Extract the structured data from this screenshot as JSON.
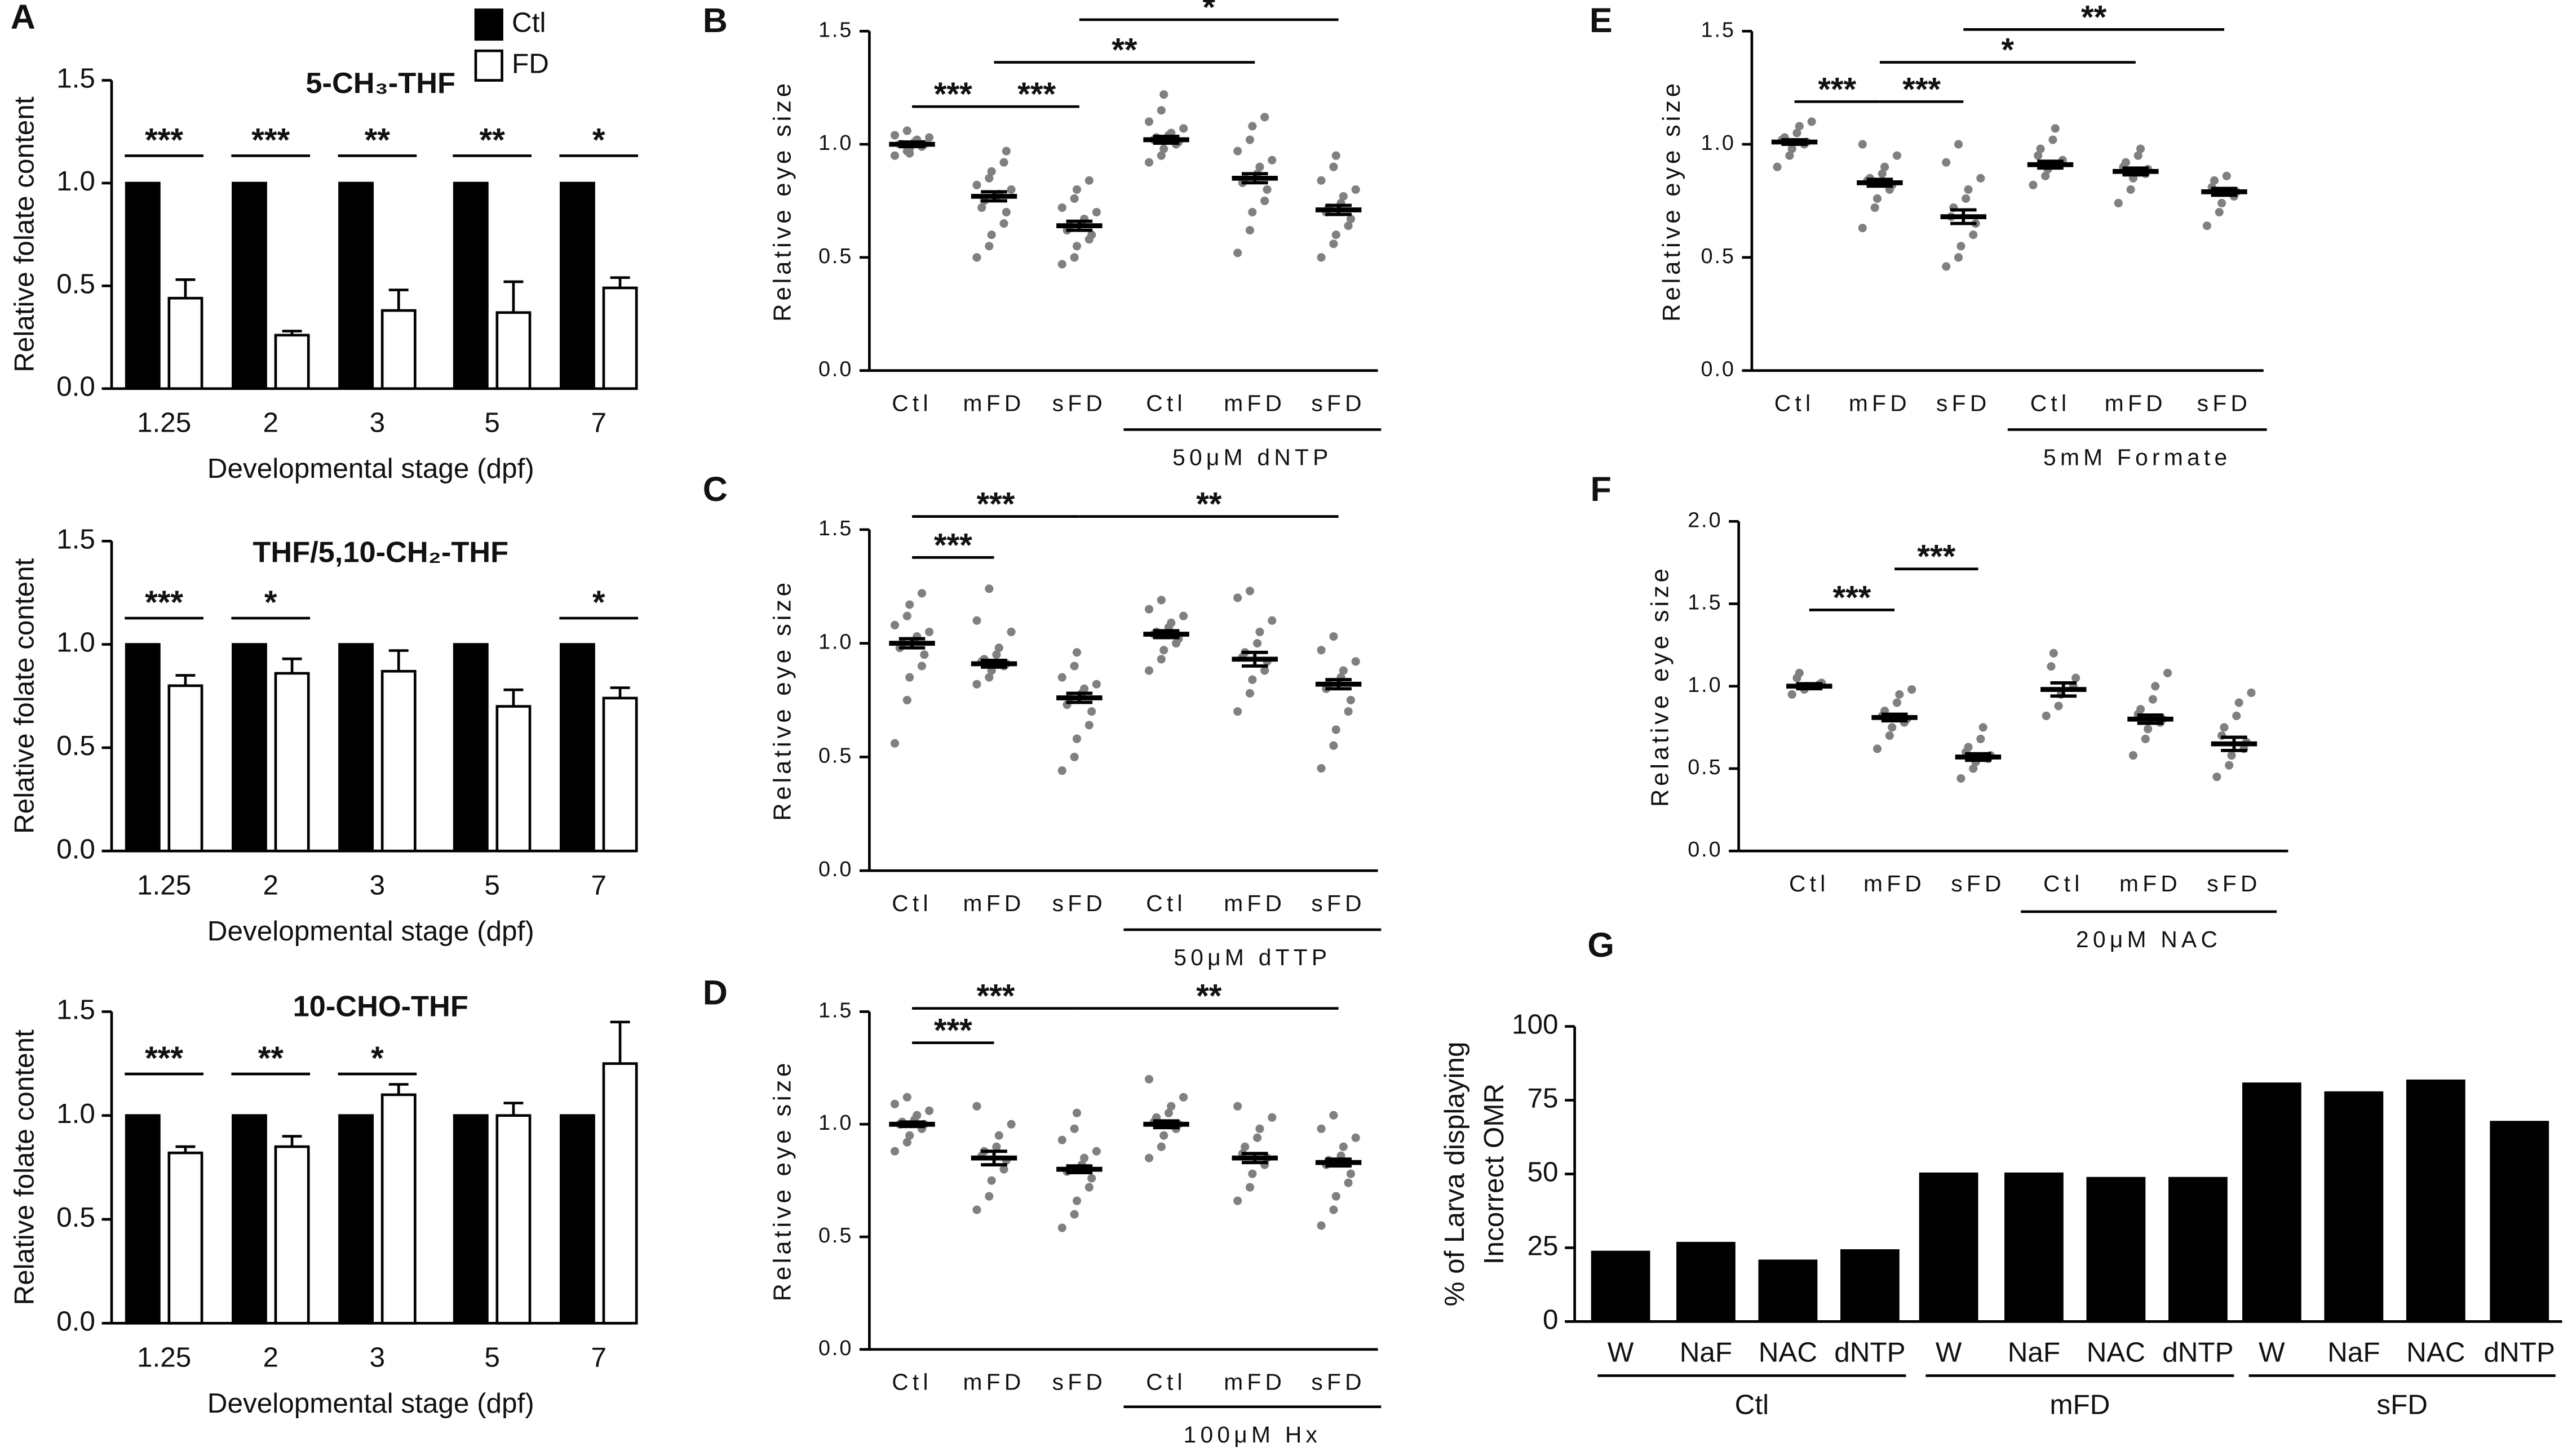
{
  "chart_data": [
    {
      "type": "bar",
      "panel": "A",
      "title": "5-CH₃-THF",
      "ylabel": "Relative folate content",
      "xlabel": "Developmental stage (dpf)",
      "categories": [
        "1.25",
        "2",
        "3",
        "5",
        "7"
      ],
      "series": [
        {
          "name": "Ctl",
          "color": "#000000",
          "values": [
            1,
            1,
            1,
            1,
            1
          ]
        },
        {
          "name": "FD",
          "color": "#ffffff",
          "values": [
            0.44,
            0.26,
            0.38,
            0.37,
            0.49
          ],
          "errors": [
            0.09,
            0.02,
            0.1,
            0.15,
            0.05
          ]
        }
      ],
      "legend": "upper right",
      "ylim": [
        0,
        1.5
      ],
      "yticks": [
        {
          "value": 0,
          "label": "0.0"
        },
        {
          "value": 0.5,
          "label": "0.5"
        },
        {
          "value": 1,
          "label": "1.0"
        },
        {
          "value": 1.5,
          "label": "1.5"
        }
      ],
      "significance": [
        {
          "text": "***",
          "category": 0
        },
        {
          "text": "***",
          "category": 1
        },
        {
          "text": "**",
          "category": 2
        },
        {
          "text": "**",
          "category": 3
        },
        {
          "text": "*",
          "category": 4
        }
      ]
    },
    {
      "type": "bar",
      "title": "THF/5,10-CH₂-THF",
      "ylabel": "Relative folate content",
      "xlabel": "Developmental stage (dpf)",
      "categories": [
        "1.25",
        "2",
        "3",
        "5",
        "7"
      ],
      "series": [
        {
          "color": "#000000",
          "values": [
            1,
            1,
            1,
            1,
            1
          ]
        },
        {
          "color": "#ffffff",
          "values": [
            0.8,
            0.86,
            0.87,
            0.7,
            0.74
          ],
          "errors": [
            0.05,
            0.07,
            0.1,
            0.08,
            0.05
          ]
        }
      ],
      "ylim": [
        0,
        1.5
      ],
      "yticks": [
        {
          "value": 0,
          "label": "0.0"
        },
        {
          "value": 0.5,
          "label": "0.5"
        },
        {
          "value": 1,
          "label": "1.0"
        },
        {
          "value": 1.5,
          "label": "1.5"
        }
      ],
      "significance": [
        {
          "text": "***",
          "category": 0
        },
        {
          "text": "*",
          "category": 1
        },
        {
          "text": "*",
          "category": 4
        }
      ]
    },
    {
      "type": "bar",
      "title": "10-CHO-THF",
      "ylabel": "Relative folate content",
      "xlabel": "Developmental stage (dpf)",
      "categories": [
        "1.25",
        "2",
        "3",
        "5",
        "7"
      ],
      "series": [
        {
          "color": "#000000",
          "values": [
            1,
            1,
            1,
            1,
            1
          ]
        },
        {
          "color": "#ffffff",
          "values": [
            0.82,
            0.85,
            1.1,
            1.0,
            1.25
          ],
          "errors": [
            0.03,
            0.05,
            0.05,
            0.06,
            0.2
          ]
        }
      ],
      "ylim": [
        0,
        1.5
      ],
      "yticks": [
        {
          "value": 0,
          "label": "0.0"
        },
        {
          "value": 0.5,
          "label": "0.5"
        },
        {
          "value": 1,
          "label": "1.0"
        },
        {
          "value": 1.5,
          "label": "1.5"
        }
      ],
      "significance": [
        {
          "text": "***",
          "category": 0
        },
        {
          "text": "**",
          "category": 1
        },
        {
          "text": "*",
          "category": 2
        }
      ]
    },
    {
      "type": "dot",
      "panel": "B",
      "ylabel": "Relative eye size",
      "group_label": "50μM dNTP",
      "color": "#808080",
      "categories": [
        "Ctl",
        "mFD",
        "sFD",
        "Ctl",
        "mFD",
        "sFD"
      ],
      "points": [
        [
          0.95,
          0.97,
          0.98,
          0.99,
          1.0,
          1.0,
          1.0,
          1.01,
          1.02,
          1.03,
          1.04,
          1.06,
          0.96,
          1.0
        ],
        [
          0.5,
          0.55,
          0.6,
          0.65,
          0.7,
          0.72,
          0.75,
          0.77,
          0.78,
          0.8,
          0.82,
          0.85,
          0.88,
          0.92,
          0.97
        ],
        [
          0.47,
          0.5,
          0.55,
          0.58,
          0.6,
          0.62,
          0.64,
          0.65,
          0.67,
          0.7,
          0.72,
          0.76,
          0.8,
          0.84
        ],
        [
          0.92,
          0.95,
          0.98,
          1.0,
          1.01,
          1.02,
          1.03,
          1.04,
          1.05,
          1.07,
          1.1,
          1.15,
          1.22
        ],
        [
          0.52,
          0.62,
          0.7,
          0.75,
          0.8,
          0.83,
          0.85,
          0.87,
          0.9,
          0.93,
          0.97,
          1.02,
          1.08,
          1.12
        ],
        [
          0.5,
          0.56,
          0.6,
          0.64,
          0.67,
          0.7,
          0.72,
          0.74,
          0.77,
          0.8,
          0.84,
          0.9,
          0.95
        ]
      ],
      "means": [
        1.0,
        0.77,
        0.64,
        1.02,
        0.85,
        0.71
      ],
      "sems": [
        0.01,
        0.02,
        0.02,
        0.015,
        0.02,
        0.02
      ],
      "ylim": [
        0,
        1.5
      ],
      "yticks": [
        {
          "value": 0,
          "label": "0.0"
        },
        {
          "value": 0.5,
          "label": "0.5"
        },
        {
          "value": 1,
          "label": "1.0"
        },
        {
          "value": 1.5,
          "label": "1.5"
        }
      ],
      "significance": [
        {
          "text": "***",
          "groups": [
            0,
            1
          ]
        },
        {
          "text": "***",
          "groups": [
            1,
            2
          ]
        },
        {
          "text": "**",
          "groups": [
            1,
            4
          ]
        },
        {
          "text": "*",
          "groups": [
            2,
            5
          ]
        }
      ]
    },
    {
      "type": "dot",
      "panel": "C",
      "ylabel": "Relative eye size",
      "group_label": "50μM dTTP",
      "color": "#808080",
      "categories": [
        "Ctl",
        "mFD",
        "sFD",
        "Ctl",
        "mFD",
        "sFD"
      ],
      "points": [
        [
          0.56,
          0.75,
          0.85,
          0.9,
          0.95,
          0.98,
          1.0,
          1.01,
          1.03,
          1.05,
          1.08,
          1.12,
          1.17,
          1.22
        ],
        [
          0.82,
          0.85,
          0.88,
          0.9,
          0.91,
          0.92,
          0.93,
          0.95,
          0.98,
          1.05,
          1.1,
          1.24
        ],
        [
          0.44,
          0.5,
          0.58,
          0.64,
          0.7,
          0.73,
          0.76,
          0.78,
          0.8,
          0.82,
          0.85,
          0.9,
          0.96
        ],
        [
          0.88,
          0.93,
          0.97,
          1.0,
          1.02,
          1.04,
          1.05,
          1.07,
          1.09,
          1.12,
          1.15,
          1.19
        ],
        [
          0.7,
          0.78,
          0.84,
          0.88,
          0.92,
          0.94,
          0.96,
          1.0,
          1.05,
          1.1,
          1.2,
          1.23
        ],
        [
          0.45,
          0.55,
          0.62,
          0.7,
          0.75,
          0.8,
          0.82,
          0.85,
          0.88,
          0.92,
          0.97,
          1.03
        ]
      ],
      "means": [
        1.0,
        0.91,
        0.76,
        1.04,
        0.93,
        0.82
      ],
      "sems": [
        0.02,
        0.015,
        0.02,
        0.015,
        0.03,
        0.02
      ],
      "ylim": [
        0,
        1.5
      ],
      "yticks": [
        {
          "value": 0,
          "label": "0.0"
        },
        {
          "value": 0.5,
          "label": "0.5"
        },
        {
          "value": 1,
          "label": "1.0"
        },
        {
          "value": 1.5,
          "label": "1.5"
        }
      ],
      "significance": [
        {
          "text": "***",
          "groups": [
            0,
            1
          ]
        },
        {
          "text": "***",
          "groups": [
            0,
            2
          ]
        },
        {
          "text": "**",
          "groups": [
            2,
            5
          ]
        }
      ]
    },
    {
      "type": "dot",
      "panel": "D",
      "ylabel": "Relative eye size",
      "group_label": "100μM Hx",
      "color": "#808080",
      "categories": [
        "Ctl",
        "mFD",
        "sFD",
        "Ctl",
        "mFD",
        "sFD"
      ],
      "points": [
        [
          0.88,
          0.92,
          0.95,
          0.98,
          1.0,
          1.0,
          1.01,
          1.02,
          1.04,
          1.06,
          1.09,
          1.12
        ],
        [
          0.62,
          0.68,
          0.75,
          0.8,
          0.84,
          0.86,
          0.88,
          0.9,
          0.95,
          1.0,
          1.08
        ],
        [
          0.54,
          0.6,
          0.66,
          0.72,
          0.76,
          0.79,
          0.8,
          0.82,
          0.85,
          0.88,
          0.93,
          0.98,
          1.05
        ],
        [
          0.85,
          0.9,
          0.95,
          0.98,
          1.0,
          1.01,
          1.03,
          1.05,
          1.08,
          1.12,
          1.2
        ],
        [
          0.66,
          0.72,
          0.78,
          0.82,
          0.85,
          0.87,
          0.9,
          0.94,
          0.98,
          1.03,
          1.08
        ],
        [
          0.55,
          0.62,
          0.68,
          0.74,
          0.78,
          0.82,
          0.84,
          0.86,
          0.9,
          0.94,
          0.98,
          1.04
        ]
      ],
      "means": [
        1.0,
        0.85,
        0.8,
        1.0,
        0.85,
        0.83
      ],
      "sems": [
        0.01,
        0.03,
        0.015,
        0.015,
        0.02,
        0.015
      ],
      "ylim": [
        0,
        1.5
      ],
      "yticks": [
        {
          "value": 0,
          "label": "0.0"
        },
        {
          "value": 0.5,
          "label": "0.5"
        },
        {
          "value": 1,
          "label": "1.0"
        },
        {
          "value": 1.5,
          "label": "1.5"
        }
      ],
      "significance": [
        {
          "text": "***",
          "groups": [
            0,
            1
          ]
        },
        {
          "text": "***",
          "groups": [
            0,
            2
          ]
        },
        {
          "text": "**",
          "groups": [
            2,
            5
          ]
        }
      ]
    },
    {
      "type": "dot",
      "panel": "E",
      "ylabel": "Relative eye size",
      "group_label": "5mM Formate",
      "color": "#808080",
      "categories": [
        "Ctl",
        "mFD",
        "sFD",
        "Ctl",
        "mFD",
        "sFD"
      ],
      "points": [
        [
          0.9,
          0.95,
          0.98,
          1.0,
          1.01,
          1.02,
          1.03,
          1.05,
          1.08,
          1.1
        ],
        [
          0.63,
          0.72,
          0.76,
          0.8,
          0.82,
          0.84,
          0.85,
          0.87,
          0.9,
          0.95,
          1.0
        ],
        [
          0.46,
          0.5,
          0.55,
          0.6,
          0.65,
          0.68,
          0.72,
          0.76,
          0.8,
          0.85,
          0.92,
          1.0
        ],
        [
          0.82,
          0.86,
          0.89,
          0.91,
          0.93,
          0.95,
          0.98,
          1.02,
          1.07
        ],
        [
          0.74,
          0.8,
          0.85,
          0.87,
          0.89,
          0.9,
          0.92,
          0.95,
          0.98
        ],
        [
          0.64,
          0.7,
          0.74,
          0.77,
          0.79,
          0.81,
          0.84,
          0.86
        ]
      ],
      "means": [
        1.01,
        0.83,
        0.68,
        0.91,
        0.88,
        0.79
      ],
      "sems": [
        0.01,
        0.015,
        0.03,
        0.015,
        0.015,
        0.015
      ],
      "ylim": [
        0,
        1.5
      ],
      "yticks": [
        {
          "value": 0,
          "label": "0.0"
        },
        {
          "value": 0.5,
          "label": "0.5"
        },
        {
          "value": 1,
          "label": "1.0"
        },
        {
          "value": 1.5,
          "label": "1.5"
        }
      ],
      "significance": [
        {
          "text": "***",
          "groups": [
            0,
            1
          ]
        },
        {
          "text": "***",
          "groups": [
            1,
            2
          ]
        },
        {
          "text": "*",
          "groups": [
            1,
            4
          ]
        },
        {
          "text": "**",
          "groups": [
            2,
            5
          ]
        }
      ]
    },
    {
      "type": "dot",
      "panel": "F",
      "ylabel": "Relative eye size",
      "group_label": "20μM NAC",
      "color": "#808080",
      "categories": [
        "Ctl",
        "mFD",
        "sFD",
        "Ctl",
        "mFD",
        "sFD"
      ],
      "points": [
        [
          0.95,
          0.98,
          1.0,
          1.01,
          1.02,
          1.05,
          1.08
        ],
        [
          0.62,
          0.7,
          0.75,
          0.78,
          0.8,
          0.82,
          0.85,
          0.9,
          0.95,
          0.98
        ],
        [
          0.44,
          0.5,
          0.54,
          0.56,
          0.58,
          0.6,
          0.63,
          0.68,
          0.75
        ],
        [
          0.82,
          0.88,
          0.95,
          1.0,
          1.05,
          1.12,
          1.2
        ],
        [
          0.58,
          0.68,
          0.74,
          0.78,
          0.8,
          0.83,
          0.86,
          0.92,
          1.0,
          1.08
        ],
        [
          0.45,
          0.52,
          0.58,
          0.62,
          0.66,
          0.7,
          0.75,
          0.82,
          0.9,
          0.96
        ]
      ],
      "means": [
        1.0,
        0.81,
        0.57,
        0.98,
        0.8,
        0.65
      ],
      "sems": [
        0.015,
        0.02,
        0.02,
        0.04,
        0.025,
        0.04
      ],
      "ylim": [
        0,
        2
      ],
      "yticks": [
        {
          "value": 0,
          "label": "0.0"
        },
        {
          "value": 0.5,
          "label": "0.5"
        },
        {
          "value": 1,
          "label": "1.0"
        },
        {
          "value": 1.5,
          "label": "1.5"
        },
        {
          "value": 2,
          "label": "2.0"
        }
      ],
      "significance": [
        {
          "text": "***",
          "groups": [
            0,
            1
          ]
        },
        {
          "text": "***",
          "groups": [
            1,
            2
          ]
        }
      ]
    },
    {
      "type": "groupbar",
      "panel": "G",
      "ylabel": [
        "% of Larva displaying",
        "Incorrect OMR"
      ],
      "color": "#000000",
      "categories": [
        "W",
        "NaF",
        "NAC",
        "dNTP",
        "W",
        "NaF",
        "NAC",
        "dNTP",
        "W",
        "NaF",
        "NAC",
        "dNTP"
      ],
      "values": [
        24,
        27,
        21,
        24.5,
        50.5,
        50.5,
        49,
        49,
        81,
        78,
        82,
        68
      ],
      "group_labels": [
        "Ctl",
        "mFD",
        "sFD"
      ],
      "ylim": [
        0,
        100
      ],
      "yticks": [
        0,
        25,
        50,
        75,
        100
      ]
    }
  ]
}
